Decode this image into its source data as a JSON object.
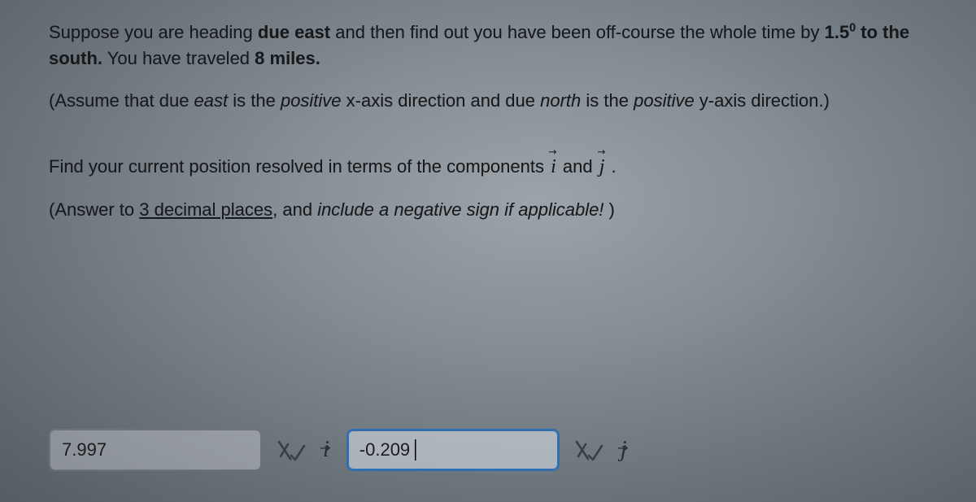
{
  "problem": {
    "p1_html": "Suppose you are heading <strong>due east</strong> and then find out you have been off-course the whole time by <strong>1.5<sup>0</sup> to the south.</strong> You have traveled <strong>8 miles.</strong>",
    "p2_html": "(Assume that due <span class=\"italic\">east</span> is the <span class=\"italic\">positive</span> x-axis direction and due <span class=\"italic\">north</span> is the <span class=\"italic\">positive</span> y-axis direction.)",
    "p3_prefix": "Find your current position resolved in terms of the components ",
    "p3_and": " and ",
    "p3_suffix": " .",
    "p4_prefix": "(Answer to ",
    "p4_underline": "3 decimal places",
    "p4_suffix_html": ", and <span class=\"italic\">include a negative sign if applicable!</span> )",
    "vec_i": "i",
    "vec_j": "j"
  },
  "answers": {
    "i_value": "7.997",
    "j_value": "-0.209",
    "vec_i": "i",
    "vec_j": "j"
  },
  "colors": {
    "text": "#1a1c1e",
    "border": "#6d7379",
    "focus_border": "#2f6fb0"
  }
}
